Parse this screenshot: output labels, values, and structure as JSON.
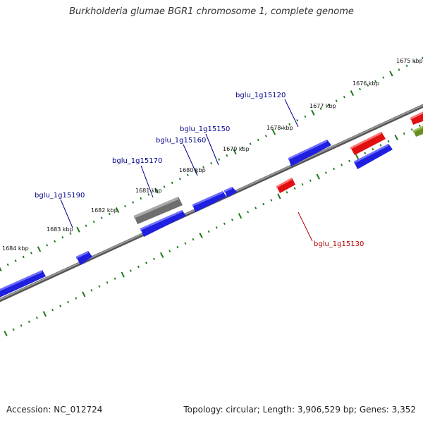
{
  "title": "Burkholderia glumae BGR1 chromosome 1, complete genome",
  "footer": {
    "accession": "Accession: NC_012724",
    "details": "Topology: circular; Length: 3,906,529 bp; Genes: 3,352"
  },
  "tick_labels": [
    "1675 kbp",
    "1676 kbp",
    "1677 kbp",
    "1678 kbp",
    "1679 kbp",
    "1680 kbp",
    "1681 kbp",
    "1682 kbp",
    "1683 kbp",
    "1684 kbp"
  ],
  "gene_labels": [
    {
      "text": "bglu_1g15120",
      "strand": "forward"
    },
    {
      "text": "bglu_1g15150",
      "strand": "forward"
    },
    {
      "text": "bglu_1g15160",
      "strand": "forward"
    },
    {
      "text": "bglu_1g15170",
      "strand": "forward"
    },
    {
      "text": "bglu_1g15190",
      "strand": "forward"
    },
    {
      "text": "bglu_1g15130",
      "strand": "reverse"
    }
  ],
  "colors": {
    "tick": "#1a7a1a",
    "backbone": "#888888",
    "gene_blue": "#1f1fe0",
    "gene_red": "#e01010",
    "gene_gray": "#6e6e6e",
    "gene_olive": "#6b8e23",
    "label_forward": "#00008b",
    "label_reverse": "#b30000"
  }
}
